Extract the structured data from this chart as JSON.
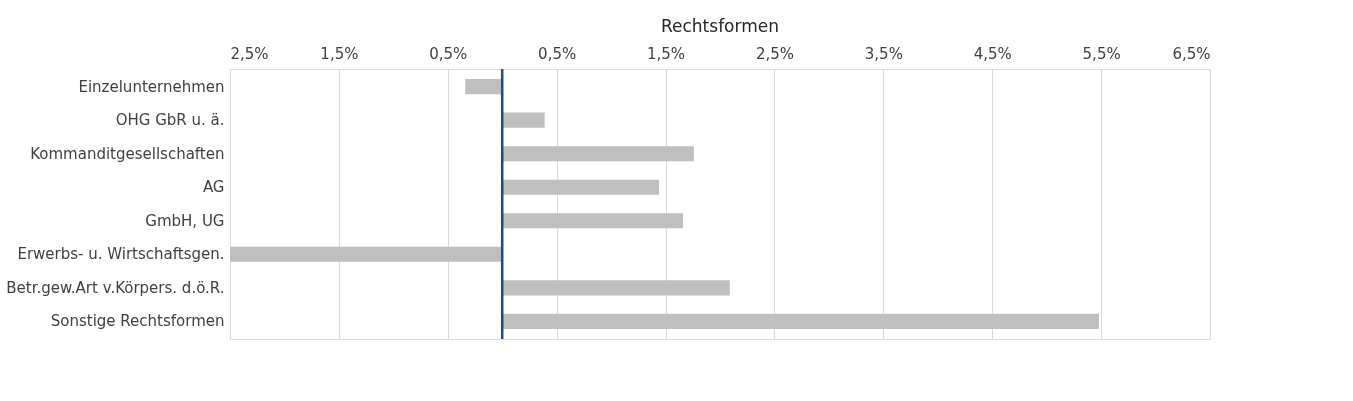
{
  "chart_data": {
    "type": "bar",
    "orientation": "horizontal",
    "title": "Rechtsformen",
    "categories": [
      "Einzelunternehmen",
      "OHG GbR u. ä.",
      "Kommanditgesellschaften",
      "AG",
      "GmbH, UG",
      "Erwerbs- u. Wirtschaftsgen.",
      "Betr.gew.Art v.Körpers. d.ö.R.",
      "Sonstige Rechtsformen"
    ],
    "values": [
      -0.34,
      0.39,
      1.76,
      1.44,
      1.66,
      -2.5,
      2.09,
      5.48
    ],
    "color": "#bfbfbf",
    "xlim": [
      -2.5,
      6.5
    ],
    "xticks": [
      {
        "value": -2.5,
        "label": "2,5%"
      },
      {
        "value": -1.5,
        "label": "1,5%"
      },
      {
        "value": -0.5,
        "label": "0,5%"
      },
      {
        "value": 0.5,
        "label": "0,5%"
      },
      {
        "value": 1.5,
        "label": "1,5%"
      },
      {
        "value": 2.5,
        "label": "2,5%"
      },
      {
        "value": 3.5,
        "label": "3,5%"
      },
      {
        "value": 4.5,
        "label": "4,5%"
      },
      {
        "value": 5.5,
        "label": "5,5%"
      },
      {
        "value": 6.5,
        "label": "6,5%"
      }
    ],
    "grid": "x",
    "ref_lines": [
      {
        "axis": "x",
        "value": 0,
        "color": "#1f4e79"
      }
    ]
  }
}
